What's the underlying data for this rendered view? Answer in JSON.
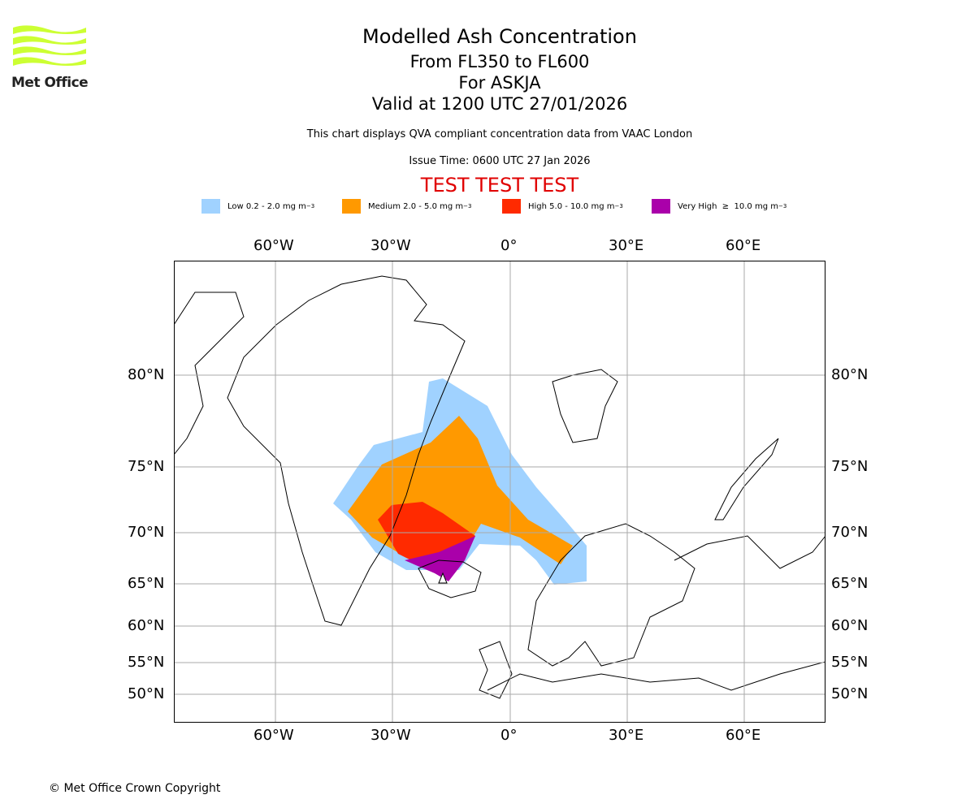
{
  "logo": {
    "text": "Met Office",
    "color": "#ccff33"
  },
  "header": {
    "title": "Modelled Ash Concentration",
    "line1": "From FL350 to FL600",
    "line2": "For ASKJA",
    "line3": "Valid at 1200 UTC 27/01/2026",
    "description": "This chart displays QVA compliant concentration data from VAAC London",
    "issue_time": "Issue Time: 0600 UTC 27 Jan 2026",
    "test_banner": "TEST TEST TEST"
  },
  "legend": [
    {
      "label": "Low 0.2 - 2.0 mg m",
      "sup": "−3",
      "color": "#a0d2ff"
    },
    {
      "label": "Medium 2.0 - 5.0 mg m",
      "sup": "−3",
      "color": "#ff9900"
    },
    {
      "label": "High 5.0 - 10.0 mg m",
      "sup": "−3",
      "color": "#ff2a00"
    },
    {
      "label": "Very High  ≥  10.0 mg m",
      "sup": "−3",
      "color": "#aa00aa"
    }
  ],
  "map": {
    "lon_labels": [
      "60°W",
      "30°W",
      "0°",
      "30°E",
      "60°E"
    ],
    "lat_labels": [
      "80°N",
      "75°N",
      "70°N",
      "65°N",
      "60°N",
      "55°N",
      "50°N"
    ]
  },
  "footer": {
    "copyright": "© Met Office Crown Copyright"
  }
}
